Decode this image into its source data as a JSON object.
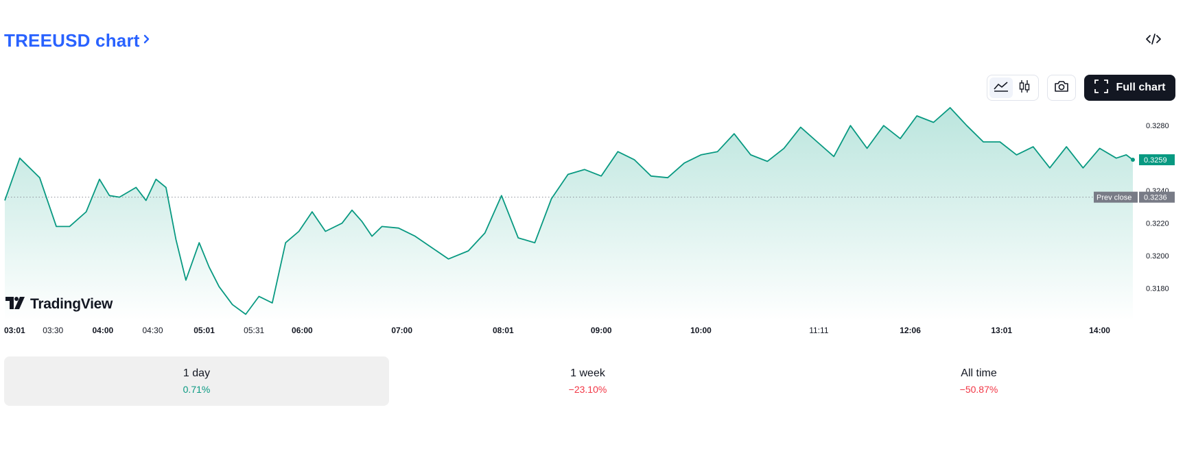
{
  "header": {
    "title": "TREEUSD chart",
    "chevron_icon": "chevron-right-icon",
    "embed_icon": "code-embed-icon"
  },
  "toolbar": {
    "line_icon": "area-chart-icon",
    "candle_icon": "candlestick-icon",
    "snapshot_icon": "camera-icon",
    "full_chart_icon": "fullscreen-icon",
    "full_chart_label": "Full chart"
  },
  "branding": {
    "logo_text": "TradingView"
  },
  "colors": {
    "accent": "#2962ff",
    "line": "#089981",
    "area_top": "#b8e4dc",
    "area_bottom": "#ffffff",
    "price_badge": "#089981",
    "prev_close_badge": "#787b86",
    "positive": "#089981",
    "negative": "#f23645"
  },
  "chart_data": {
    "type": "area",
    "yticks": [
      0.318,
      0.32,
      0.322,
      0.324,
      0.328
    ],
    "ylim": [
      0.316,
      0.3294
    ],
    "xlim": [
      "03:01",
      "14:20"
    ],
    "xtick_labels": [
      "03:01",
      "03:30",
      "04:00",
      "04:30",
      "05:01",
      "05:31",
      "06:00",
      "07:00",
      "08:01",
      "09:00",
      "10:00",
      "11:11",
      "12:06",
      "13:01",
      "14:00"
    ],
    "bold_xticks": [
      "03:01",
      "04:00",
      "05:01",
      "06:00",
      "07:00",
      "08:01",
      "09:00",
      "10:00",
      "12:06",
      "13:01",
      "14:00"
    ],
    "last_price": 0.3259,
    "last_price_label": "0.3259",
    "prev_close": 0.3236,
    "prev_close_value_label": "0.3236",
    "prev_close_label": "Prev close",
    "series": [
      {
        "x": [
          "03:01",
          "03:10",
          "03:22",
          "03:32",
          "03:40",
          "03:50",
          "03:58",
          "04:04",
          "04:10",
          "04:20",
          "04:26",
          "04:32",
          "04:38",
          "04:44",
          "04:50",
          "04:58",
          "05:04",
          "05:10",
          "05:18",
          "05:26",
          "05:34",
          "05:42",
          "05:50",
          "05:58",
          "06:06",
          "06:14",
          "06:24",
          "06:30",
          "06:36",
          "06:42",
          "06:48",
          "06:58",
          "07:08",
          "07:18",
          "07:28",
          "07:40",
          "07:50",
          "08:00",
          "08:10",
          "08:20",
          "08:30",
          "08:40",
          "08:50",
          "09:00",
          "09:10",
          "09:20",
          "09:30",
          "09:40",
          "09:50",
          "10:00",
          "10:10",
          "10:20",
          "10:30",
          "10:40",
          "10:50",
          "11:00",
          "11:10",
          "11:20",
          "11:30",
          "11:40",
          "11:50",
          "12:00",
          "12:10",
          "12:20",
          "12:30",
          "12:40",
          "12:50",
          "13:00",
          "13:10",
          "13:20",
          "13:30",
          "13:40",
          "13:50",
          "14:00",
          "14:10",
          "14:16",
          "14:20"
        ],
        "y": [
          0.3234,
          0.326,
          0.3248,
          0.3218,
          0.3218,
          0.3227,
          0.3247,
          0.3237,
          0.3236,
          0.3242,
          0.3234,
          0.3247,
          0.3242,
          0.321,
          0.3185,
          0.3208,
          0.3193,
          0.3181,
          0.317,
          0.3164,
          0.3175,
          0.3171,
          0.3208,
          0.3215,
          0.3227,
          0.3215,
          0.322,
          0.3228,
          0.3221,
          0.3212,
          0.3218,
          0.3217,
          0.3212,
          0.3205,
          0.3198,
          0.3203,
          0.3214,
          0.3237,
          0.3211,
          0.3208,
          0.3235,
          0.325,
          0.3253,
          0.3249,
          0.3264,
          0.3259,
          0.3249,
          0.3248,
          0.3257,
          0.3262,
          0.3264,
          0.3275,
          0.3262,
          0.3258,
          0.3266,
          0.3279,
          0.327,
          0.3261,
          0.328,
          0.3266,
          0.328,
          0.3272,
          0.3286,
          0.3282,
          0.3291,
          0.328,
          0.327,
          0.327,
          0.3262,
          0.3267,
          0.3254,
          0.3267,
          0.3254,
          0.3266,
          0.326,
          0.3262,
          0.3259
        ]
      }
    ]
  },
  "periods": [
    {
      "label": "1 day",
      "value": "0.71%",
      "trend": "pos"
    },
    {
      "label": "1 week",
      "value": "−23.10%",
      "trend": "neg"
    },
    {
      "label": "All time",
      "value": "−50.87%",
      "trend": "neg"
    }
  ]
}
